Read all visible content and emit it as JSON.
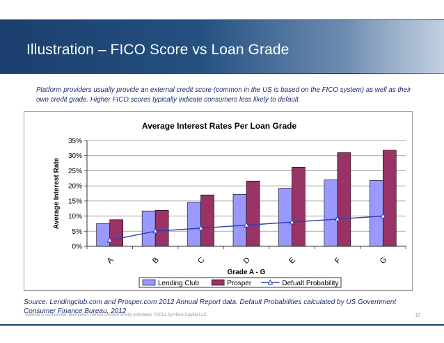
{
  "slide": {
    "title": "Illustration – FICO Score vs Loan Grade",
    "intro": "Platform providers usually provide an external credit score (common in the US is based on the FICO system) as well as their own credit grade.  Higher FICO scores typically indicate consumers less likely to default.",
    "source": "Source: Lendingclub.com  and Prosper.com 2012 Annual Report data. Default Probabilities calculated by US Government Consumer Finance Bureau, 2012",
    "footer": "Material is confidential; distribution without consent strictly prohibited. ©2013 Symforis Capital LLC",
    "page_number": "12",
    "header_color": "#1b3f6e"
  },
  "chart_data": {
    "type": "bar",
    "title": "Average Interest Rates Per Loan Grade",
    "xlabel": "Grade A -  G",
    "ylabel": "Average Interest Rate",
    "categories": [
      "A",
      "B",
      "C",
      "D",
      "E",
      "F",
      "G"
    ],
    "ylim": [
      0,
      35
    ],
    "yticks": [
      "0%",
      "5%",
      "10%",
      "15%",
      "20%",
      "25%",
      "30%",
      "35%"
    ],
    "grid": true,
    "legend_position": "bottom",
    "series": [
      {
        "name": "Lending Club",
        "kind": "bar",
        "color": "#9999ff",
        "values": [
          7.5,
          11.7,
          14.6,
          17.2,
          19.2,
          22,
          21.8
        ]
      },
      {
        "name": "Prosper",
        "kind": "bar",
        "color": "#993366",
        "values": [
          8.8,
          11.9,
          17,
          21.6,
          26.2,
          31,
          31.8
        ]
      },
      {
        "name": "Defualt Probability",
        "kind": "line",
        "color": "#2b3fae",
        "values": [
          2,
          5,
          6,
          7,
          8,
          9,
          10
        ]
      }
    ]
  }
}
